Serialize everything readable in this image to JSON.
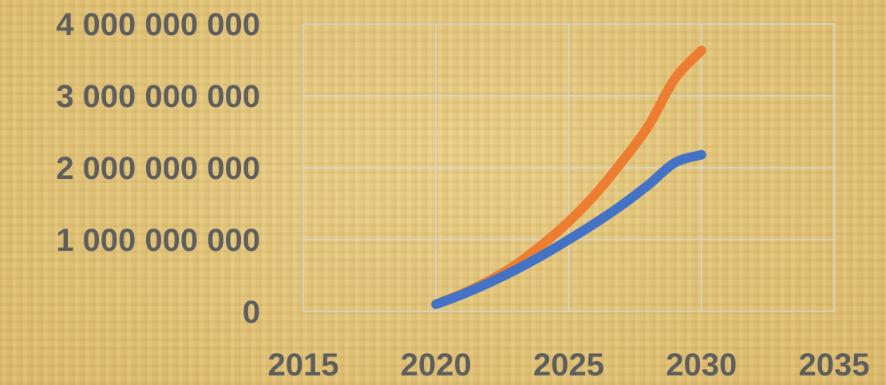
{
  "chart_data": {
    "type": "line",
    "title": "",
    "xlabel": "",
    "ylabel": "",
    "xlim": [
      2015,
      2035
    ],
    "ylim": [
      0,
      4000000000
    ],
    "x_ticks": [
      2015,
      2020,
      2025,
      2030,
      2035
    ],
    "x_tick_labels": [
      "2015",
      "2020",
      "2025",
      "2030",
      "2035"
    ],
    "y_ticks": [
      0,
      1000000000,
      2000000000,
      3000000000,
      4000000000
    ],
    "y_tick_labels": [
      "0",
      "1 000 000 000",
      "2 000 000 000",
      "3 000 000 000",
      "4 000 000 000"
    ],
    "grid": true,
    "legend": "none",
    "series": [
      {
        "color": "#ed7d31",
        "x": [
          2020,
          2021,
          2022,
          2023,
          2024,
          2025,
          2026,
          2027,
          2028,
          2029,
          2030
        ],
        "y": [
          100000000,
          250000000,
          430000000,
          650000000,
          930000000,
          1250000000,
          1630000000,
          2080000000,
          2580000000,
          3240000000,
          3630000000
        ]
      },
      {
        "color": "#4472c4",
        "x": [
          2020,
          2021,
          2022,
          2023,
          2024,
          2025,
          2026,
          2027,
          2028,
          2029,
          2030
        ],
        "y": [
          100000000,
          240000000,
          400000000,
          580000000,
          780000000,
          1000000000,
          1230000000,
          1480000000,
          1760000000,
          2070000000,
          2180000000
        ]
      }
    ]
  }
}
